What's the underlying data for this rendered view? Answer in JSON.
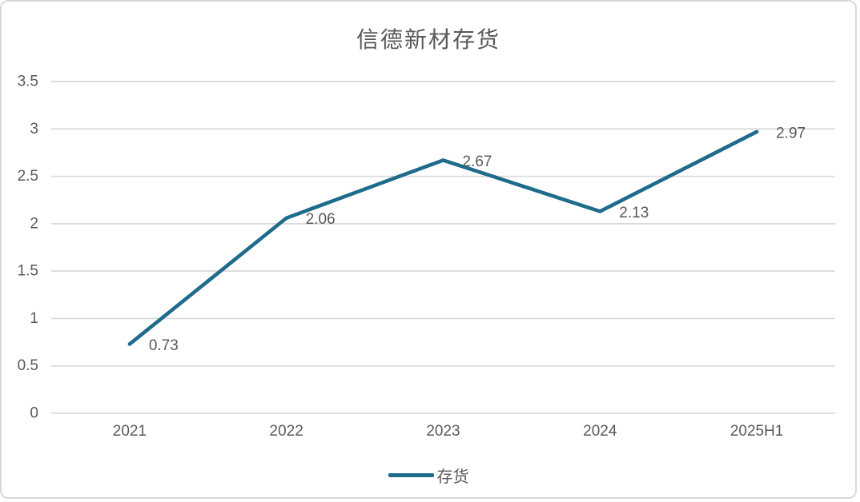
{
  "chart": {
    "title": "信德新材存货",
    "legend_label": "存货"
  },
  "chart_data": {
    "type": "line",
    "title": "信德新材存货",
    "categories": [
      "2021",
      "2022",
      "2023",
      "2024",
      "2025H1"
    ],
    "series": [
      {
        "name": "存货",
        "values": [
          0.73,
          2.06,
          2.67,
          2.13,
          2.97
        ],
        "color": "#1F6B8C"
      }
    ],
    "data_labels": [
      "0.73",
      "2.06",
      "2.67",
      "2.13",
      "2.97"
    ],
    "xlabel": "",
    "ylabel": "",
    "ylim": [
      0,
      3.5
    ],
    "ytick_values": [
      0,
      0.5,
      1,
      1.5,
      2,
      2.5,
      3,
      3.5
    ],
    "ytick_labels": [
      "0",
      "0.5",
      "1",
      "1.5",
      "2",
      "2.5",
      "3",
      "3.5"
    ],
    "grid": true,
    "legend_position": "bottom",
    "colors": {
      "line": "#1F6B8C",
      "gridline": "#D9D9D9",
      "text": "#595959",
      "border": "#D9D9D9",
      "background": "#FFFFFF"
    }
  }
}
